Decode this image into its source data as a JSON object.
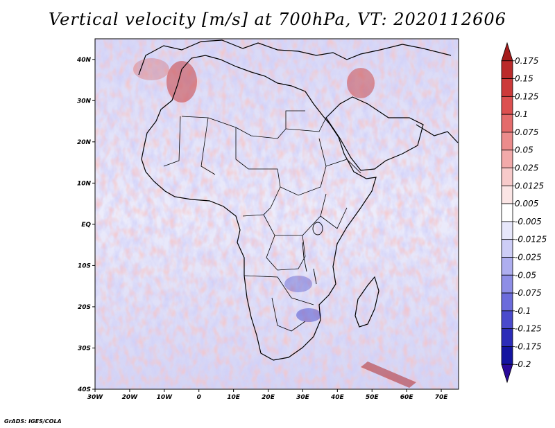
{
  "title": "Vertical velocity [m/s] at 700hPa, VT: 2020112606",
  "credit": "GrADS: IGES/COLA",
  "map": {
    "lon_ticks": [
      "30W",
      "20W",
      "10W",
      "0",
      "10E",
      "20E",
      "30E",
      "40E",
      "50E",
      "60E",
      "70E"
    ],
    "lat_ticks": [
      "40N",
      "30N",
      "20N",
      "10N",
      "EQ",
      "10S",
      "20S",
      "30S",
      "40S"
    ],
    "lon_range": [
      -30,
      75
    ],
    "lat_range": [
      -40,
      45
    ]
  },
  "colorbar": {
    "labels": [
      "0.175",
      "0.15",
      "0.125",
      "0.1",
      "0.075",
      "0.05",
      "0.025",
      "0.0125",
      "0.005",
      "-0.005",
      "-0.0125",
      "-0.025",
      "-0.05",
      "-0.075",
      "-0.1",
      "-0.125",
      "-0.175",
      "-0.2"
    ],
    "colors": [
      "#a51c1c",
      "#bb2a2a",
      "#cc3a3a",
      "#dc5050",
      "#e46c6c",
      "#ec8c8c",
      "#f2aaaa",
      "#f7caca",
      "#fbe5e5",
      "#ffffff",
      "#e7e7fb",
      "#cdcdf6",
      "#aeaeef",
      "#8e8ee6",
      "#6c6cdb",
      "#4a4acc",
      "#2c2cb8",
      "#1414a0",
      "#2a0a9a"
    ]
  }
}
